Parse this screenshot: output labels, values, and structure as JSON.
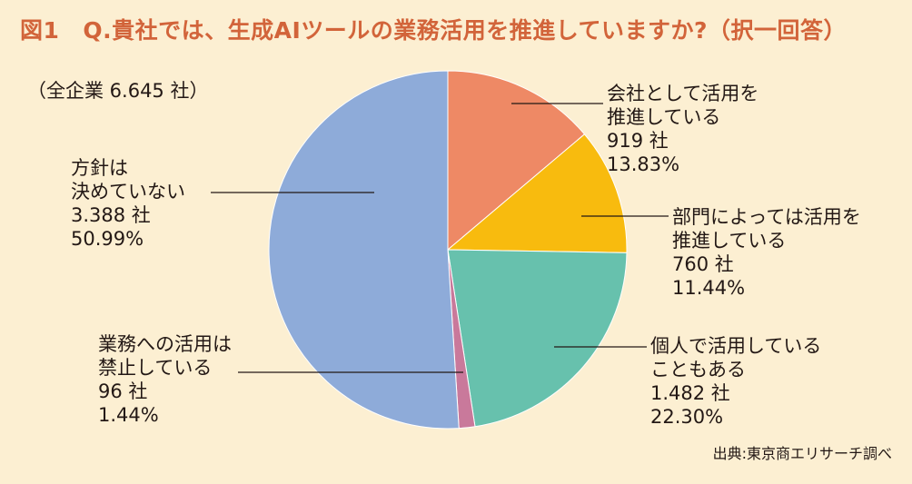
{
  "title": {
    "figure": "図1",
    "question": "Q.貴社では、生成AIツールの業務活用を推進していますか?（択一回答）"
  },
  "total_label": "（全企業 6.645 社）",
  "source": "出典:東京商エリサーチ調べ",
  "chart_data": {
    "type": "pie",
    "slices": [
      {
        "label": [
          "会社として活用を",
          "推進している"
        ],
        "count": "919 社",
        "percent_label": "13.83%",
        "value": 13.83,
        "color": "#ee8965"
      },
      {
        "label": [
          "部門によっては活用を",
          "推進している"
        ],
        "count": "760 社",
        "percent_label": "11.44%",
        "value": 11.44,
        "color": "#f8bb0e"
      },
      {
        "label": [
          "個人で活用している",
          "こともある"
        ],
        "count": "1.482 社",
        "percent_label": "22.30%",
        "value": 22.3,
        "color": "#67c1ad"
      },
      {
        "label": [
          "業務への活用は",
          "禁止している"
        ],
        "count": "96 社",
        "percent_label": "1.44%",
        "value": 1.44,
        "color": "#c9799b"
      },
      {
        "label": [
          "方針は",
          "決めていない"
        ],
        "count": "3.388 社",
        "percent_label": "50.99%",
        "value": 50.99,
        "color": "#8eabd9"
      }
    ]
  }
}
